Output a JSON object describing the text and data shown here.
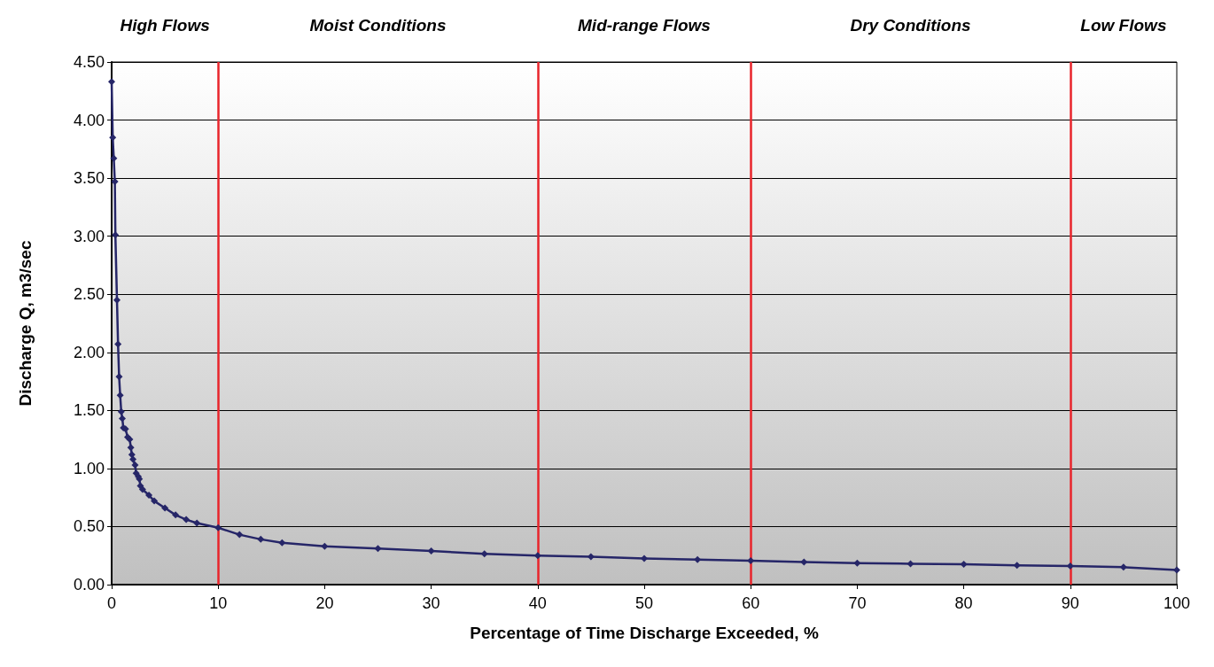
{
  "chart_data": {
    "type": "line",
    "xlabel": "Percentage of Time Discharge Exceeded, %",
    "ylabel": "Discharge Q, m3/sec",
    "x": [
      0,
      0.1,
      0.2,
      0.3,
      0.35,
      0.5,
      0.6,
      0.7,
      0.8,
      0.9,
      1.0,
      1.1,
      1.3,
      1.5,
      1.7,
      1.8,
      1.9,
      2.0,
      2.2,
      2.3,
      2.5,
      2.6,
      2.7,
      2.9,
      3.5,
      4,
      5,
      6,
      7,
      8,
      10,
      12,
      14,
      16,
      20,
      25,
      30,
      35,
      40,
      45,
      50,
      55,
      60,
      65,
      70,
      75,
      80,
      85,
      90,
      95,
      100
    ],
    "series": [
      {
        "color": "#262668",
        "values": [
          4.33,
          3.85,
          3.67,
          3.47,
          3.01,
          2.45,
          2.07,
          1.79,
          1.63,
          1.49,
          1.43,
          1.35,
          1.34,
          1.27,
          1.25,
          1.18,
          1.12,
          1.08,
          1.03,
          0.96,
          0.93,
          0.91,
          0.85,
          0.82,
          0.77,
          0.72,
          0.66,
          0.6,
          0.56,
          0.53,
          0.49,
          0.43,
          0.39,
          0.36,
          0.33,
          0.31,
          0.29,
          0.265,
          0.25,
          0.24,
          0.225,
          0.215,
          0.205,
          0.195,
          0.185,
          0.18,
          0.175,
          0.165,
          0.16,
          0.15,
          0.125
        ]
      }
    ],
    "xlim": [
      0,
      100
    ],
    "xticks": [
      0,
      10,
      20,
      30,
      40,
      50,
      60,
      70,
      80,
      90,
      100
    ],
    "ylim": [
      0,
      4.5
    ],
    "yticks": [
      {
        "value": 0,
        "label": "0.00"
      },
      {
        "value": 0.5,
        "label": "0.50"
      },
      {
        "value": 1,
        "label": "1.00"
      },
      {
        "value": 1.5,
        "label": "1.50"
      },
      {
        "value": 2,
        "label": "2.00"
      },
      {
        "value": 2.5,
        "label": "2.50"
      },
      {
        "value": 3,
        "label": "3.00"
      },
      {
        "value": 3.5,
        "label": "3.50"
      },
      {
        "value": 4,
        "label": "4.00"
      },
      {
        "value": 4.5,
        "label": "4.50"
      }
    ],
    "ref_lines": [
      {
        "axis": "x",
        "value": 10,
        "color": "#e8242b"
      },
      {
        "axis": "x",
        "value": 40,
        "color": "#e8242b"
      },
      {
        "axis": "x",
        "value": 60,
        "color": "#e8242b"
      },
      {
        "axis": "x",
        "value": 90,
        "color": "#e8242b"
      }
    ],
    "annotations": [
      "High Flows",
      "Moist Conditions",
      "Mid-range Flows",
      "Dry Conditions",
      "Low Flows"
    ],
    "grid": "y",
    "marker": "diamond",
    "line_style": "solid"
  }
}
